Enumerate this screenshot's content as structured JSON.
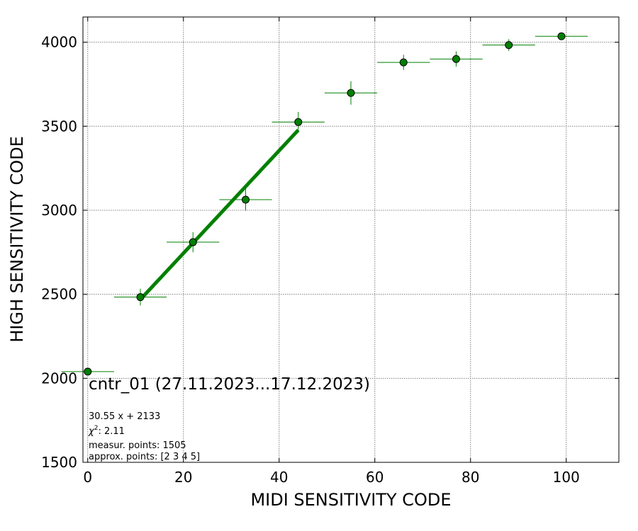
{
  "chart_data": {
    "type": "scatter",
    "xlabel": "MIDI SENSITIVITY CODE",
    "ylabel": "HIGH SENSITIVITY CODE",
    "xlim": [
      -1,
      111
    ],
    "ylim": [
      1500,
      4150
    ],
    "xticks": [
      0,
      20,
      40,
      60,
      80,
      100
    ],
    "yticks": [
      1500,
      2000,
      2500,
      3000,
      3500,
      4000
    ],
    "grid": true,
    "color": "#008000",
    "points": [
      {
        "x": 0,
        "y": 2040,
        "xerr": 5.5,
        "yerr": 0
      },
      {
        "x": 11,
        "y": 2483,
        "xerr": 5.5,
        "yerr": 50
      },
      {
        "x": 22,
        "y": 2810,
        "xerr": 5.5,
        "yerr": 60
      },
      {
        "x": 33,
        "y": 3063,
        "xerr": 5.5,
        "yerr": 65
      },
      {
        "x": 44,
        "y": 3525,
        "xerr": 5.5,
        "yerr": 60
      },
      {
        "x": 55,
        "y": 3698,
        "xerr": 5.5,
        "yerr": 70
      },
      {
        "x": 66,
        "y": 3880,
        "xerr": 5.5,
        "yerr": 45
      },
      {
        "x": 77,
        "y": 3900,
        "xerr": 5.5,
        "yerr": 45
      },
      {
        "x": 88,
        "y": 3983,
        "xerr": 5.5,
        "yerr": 35
      },
      {
        "x": 99,
        "y": 4035,
        "xerr": 5.5,
        "yerr": 20
      }
    ],
    "fit_line": {
      "slope": 30.55,
      "intercept": 2133,
      "x_start": 11,
      "x_end": 44
    },
    "annotations": {
      "title": "cntr_01 (27.11.2023...17.12.2023)",
      "equation": "30.55 x + 2133",
      "chi2_label": "χ",
      "chi2_sup": "2",
      "chi2_value": ": 2.11",
      "measur_points": "measur. points: 1505",
      "approx_points": "approx. points: [2 3 4 5]"
    }
  }
}
